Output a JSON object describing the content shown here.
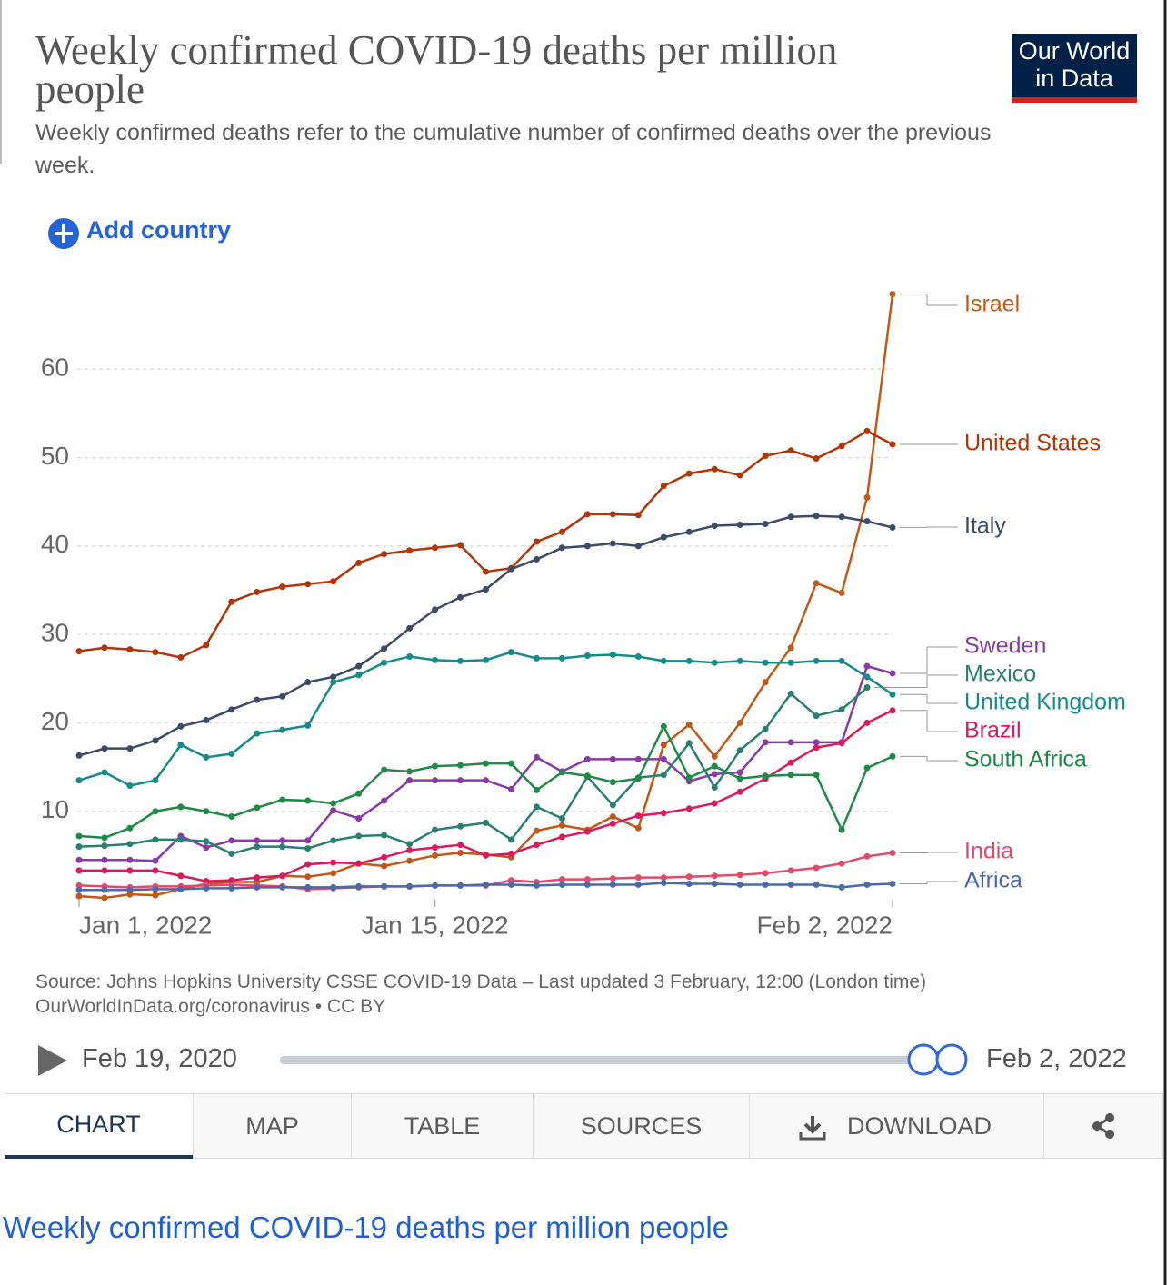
{
  "header": {
    "logo": "Our World in Data",
    "add_country": "Add country"
  },
  "chart_data": {
    "type": "line",
    "title": "Weekly confirmed COVID-19 deaths per million people",
    "subtitle": "Weekly confirmed deaths refer to the cumulative number of confirmed deaths over the previous week.",
    "x": [
      "2022-01-01",
      "2022-01-02",
      "2022-01-03",
      "2022-01-04",
      "2022-01-05",
      "2022-01-06",
      "2022-01-07",
      "2022-01-08",
      "2022-01-09",
      "2022-01-10",
      "2022-01-11",
      "2022-01-12",
      "2022-01-13",
      "2022-01-14",
      "2022-01-15",
      "2022-01-16",
      "2022-01-17",
      "2022-01-18",
      "2022-01-19",
      "2022-01-20",
      "2022-01-21",
      "2022-01-22",
      "2022-01-23",
      "2022-01-24",
      "2022-01-25",
      "2022-01-26",
      "2022-01-27",
      "2022-01-28",
      "2022-01-29",
      "2022-01-30",
      "2022-01-31",
      "2022-02-01",
      "2022-02-02"
    ],
    "xlim": [
      "2022-01-01",
      "2022-02-02"
    ],
    "xticks": [
      {
        "value": "2022-01-01",
        "label": "Jan 1, 2022"
      },
      {
        "value": "2022-01-15",
        "label": "Jan 15, 2022"
      },
      {
        "value": "2022-02-02",
        "label": "Feb 2, 2022"
      }
    ],
    "ylim": [
      0,
      70
    ],
    "yticks": [
      10,
      20,
      30,
      40,
      50,
      60
    ],
    "grid": true,
    "series": [
      {
        "name": "Israel",
        "color": "#c05917",
        "values": [
          0.4,
          0.2,
          0.6,
          0.5,
          1.2,
          1.8,
          2.0,
          2.0,
          2.7,
          2.6,
          3.0,
          4.1,
          3.8,
          4.4,
          5.0,
          5.3,
          5.1,
          4.8,
          7.8,
          8.4,
          7.9,
          9.4,
          8.1,
          17.5,
          19.8,
          16.2,
          20.0,
          24.6,
          28.5,
          35.8,
          34.7,
          45.5,
          68.5
        ]
      },
      {
        "name": "United States",
        "color": "#b13507",
        "values": [
          28.1,
          28.5,
          28.3,
          28.0,
          27.4,
          28.8,
          33.7,
          34.8,
          35.4,
          35.7,
          36.0,
          38.1,
          39.1,
          39.5,
          39.8,
          40.1,
          37.1,
          37.5,
          40.5,
          41.6,
          43.6,
          43.6,
          43.5,
          46.8,
          48.2,
          48.7,
          48.0,
          50.2,
          50.8,
          49.9,
          51.3,
          53.0,
          51.5
        ]
      },
      {
        "name": "Italy",
        "color": "#3d4b68",
        "values": [
          16.3,
          17.1,
          17.1,
          18.0,
          19.6,
          20.3,
          21.5,
          22.6,
          23.0,
          24.6,
          25.2,
          26.4,
          28.4,
          30.7,
          32.8,
          34.2,
          35.1,
          37.4,
          38.5,
          39.8,
          40.0,
          40.3,
          40.0,
          41.0,
          41.6,
          42.3,
          42.4,
          42.5,
          43.3,
          43.4,
          43.3,
          42.8,
          42.1
        ]
      },
      {
        "name": "Sweden",
        "color": "#8a3aa6",
        "values": [
          4.5,
          4.5,
          4.5,
          4.4,
          7.2,
          5.9,
          6.7,
          6.7,
          6.7,
          6.7,
          10.1,
          9.2,
          11.2,
          13.5,
          13.5,
          13.5,
          13.5,
          12.5,
          16.1,
          14.5,
          15.9,
          15.9,
          15.9,
          15.9,
          13.4,
          14.2,
          14.4,
          17.8,
          17.8,
          17.8,
          17.8,
          26.4,
          25.6
        ]
      },
      {
        "name": "Mexico",
        "color": "#2a7f73",
        "values": [
          6.0,
          6.1,
          6.3,
          6.8,
          6.8,
          6.6,
          5.2,
          6.0,
          6.0,
          5.8,
          6.7,
          7.2,
          7.3,
          6.3,
          7.9,
          8.3,
          8.7,
          6.8,
          10.5,
          9.2,
          13.9,
          10.7,
          13.8,
          14.1,
          17.7,
          12.7,
          16.9,
          19.3,
          23.3,
          20.8,
          21.5,
          24.0,
          null
        ]
      },
      {
        "name": "United Kingdom",
        "color": "#168b8a",
        "values": [
          13.5,
          14.4,
          12.9,
          13.5,
          17.5,
          16.1,
          16.5,
          18.8,
          19.2,
          19.7,
          24.6,
          25.4,
          26.8,
          27.5,
          27.1,
          27.0,
          27.1,
          28.0,
          27.3,
          27.3,
          27.6,
          27.7,
          27.5,
          27.0,
          27.0,
          26.8,
          27.0,
          26.8,
          26.8,
          27.0,
          27.0,
          25.2,
          23.2
        ]
      },
      {
        "name": "Brazil",
        "color": "#d81b60",
        "values": [
          3.3,
          3.3,
          3.3,
          3.3,
          2.7,
          2.1,
          2.2,
          2.5,
          2.7,
          4.0,
          4.2,
          4.1,
          4.8,
          5.6,
          5.9,
          6.2,
          5.0,
          5.2,
          6.2,
          7.1,
          7.7,
          8.6,
          9.5,
          9.8,
          10.3,
          10.9,
          12.2,
          13.7,
          15.5,
          17.2,
          17.7,
          20.0,
          21.4
        ]
      },
      {
        "name": "South Africa",
        "color": "#1d8a45",
        "values": [
          7.2,
          7.0,
          8.1,
          10.0,
          10.5,
          10.0,
          9.4,
          10.4,
          11.3,
          11.2,
          10.9,
          12.0,
          14.7,
          14.5,
          15.1,
          15.2,
          15.4,
          15.4,
          12.4,
          14.4,
          14.0,
          13.3,
          13.7,
          19.6,
          13.8,
          15.1,
          13.7,
          14.0,
          14.1,
          14.1,
          7.9,
          14.9,
          16.2
        ]
      },
      {
        "name": "India",
        "color": "#e04b6a",
        "values": [
          1.6,
          1.5,
          1.4,
          1.5,
          1.5,
          1.6,
          1.7,
          1.6,
          1.5,
          1.2,
          1.3,
          1.4,
          1.5,
          1.5,
          1.6,
          1.6,
          1.6,
          2.2,
          2.0,
          2.3,
          2.3,
          2.4,
          2.5,
          2.5,
          2.6,
          2.7,
          2.8,
          3.0,
          3.3,
          3.6,
          4.1,
          4.9,
          5.3
        ]
      },
      {
        "name": "Africa",
        "color": "#4c6aa5",
        "values": [
          1.1,
          1.1,
          1.1,
          1.2,
          1.2,
          1.3,
          1.3,
          1.4,
          1.4,
          1.4,
          1.4,
          1.5,
          1.5,
          1.5,
          1.6,
          1.6,
          1.7,
          1.7,
          1.6,
          1.7,
          1.7,
          1.7,
          1.7,
          1.9,
          1.8,
          1.8,
          1.7,
          1.7,
          1.7,
          1.7,
          1.4,
          1.7,
          1.8
        ]
      }
    ]
  },
  "footer": {
    "source": "Source: Johns Hopkins University CSSE COVID-19 Data – Last updated 3 February, 12:00 (London time)",
    "url": "OurWorldInData.org/coronavirus • CC BY"
  },
  "timeline": {
    "start": "Feb 19, 2020",
    "end": "Feb 2, 2022"
  },
  "tabs": [
    "CHART",
    "MAP",
    "TABLE",
    "SOURCES",
    "DOWNLOAD"
  ],
  "link": "Weekly confirmed COVID-19 deaths per million people"
}
